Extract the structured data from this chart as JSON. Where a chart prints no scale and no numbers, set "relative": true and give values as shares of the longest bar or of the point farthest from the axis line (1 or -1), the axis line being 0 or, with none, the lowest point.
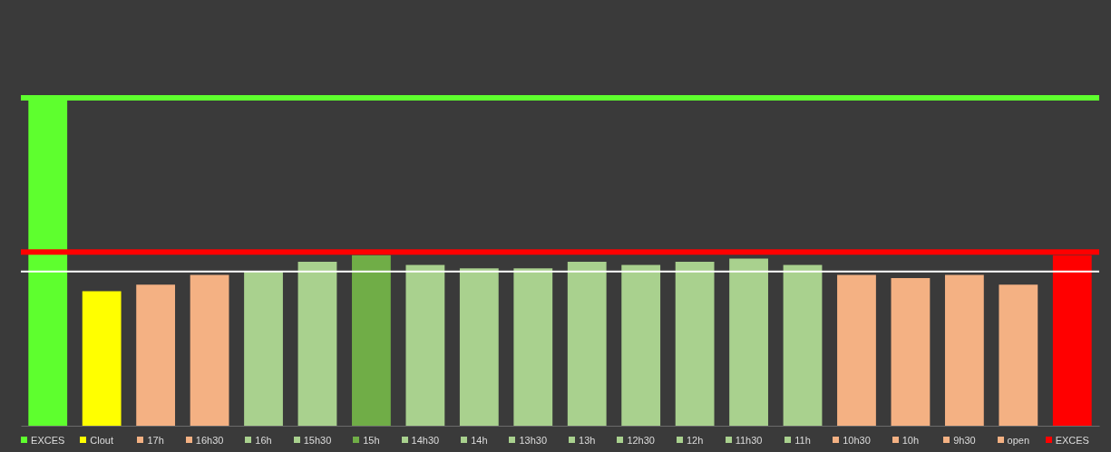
{
  "chart_data": {
    "type": "bar",
    "relative": true,
    "categories": [
      "EXCES",
      "Clout",
      "17h",
      "16h30",
      "16h",
      "15h30",
      "15h",
      "14h30",
      "14h",
      "13h30",
      "13h",
      "12h30",
      "12h",
      "11h30",
      "11h",
      "10h30",
      "10h",
      "9h30",
      "open",
      "EXCES"
    ],
    "values": [
      1,
      0.41,
      0.43,
      0.46,
      0.47,
      0.5,
      0.52,
      0.49,
      0.48,
      0.48,
      0.5,
      0.49,
      0.5,
      0.51,
      0.49,
      0.46,
      0.45,
      0.46,
      0.43,
      0.52
    ],
    "colors": [
      "#5eff2e",
      "#ffff00",
      "#f4b183",
      "#f4b183",
      "#a9d18e",
      "#a9d18e",
      "#70ad47",
      "#a9d18e",
      "#a9d18e",
      "#a9d18e",
      "#a9d18e",
      "#a9d18e",
      "#a9d18e",
      "#a9d18e",
      "#a9d18e",
      "#f4b183",
      "#f4b183",
      "#f4b183",
      "#f4b183",
      "#ff0000"
    ],
    "ref_lines": [
      {
        "axis": "y",
        "value": 1,
        "color": "#5eff2e"
      },
      {
        "axis": "y",
        "value": 0.53,
        "color": "#ff0000"
      },
      {
        "axis": "y",
        "value": 0.47,
        "color": "#ffffff"
      }
    ],
    "grid": false
  }
}
